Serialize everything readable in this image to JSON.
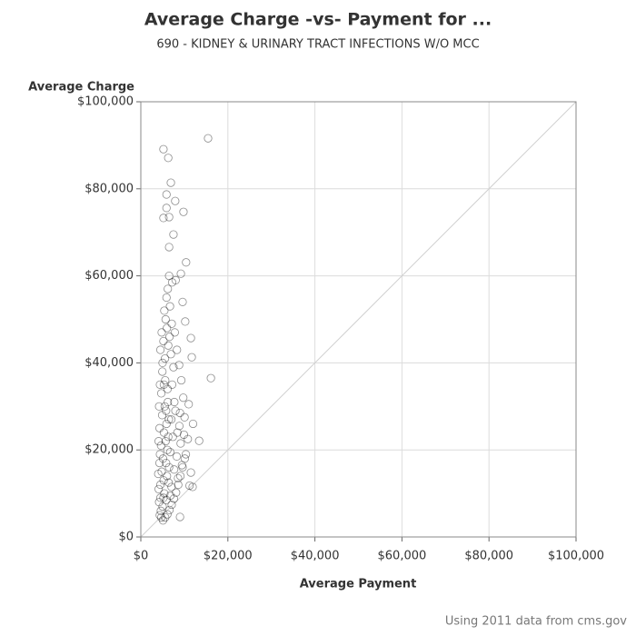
{
  "chart_data": {
    "type": "scatter",
    "title": "Average Charge -vs- Payment for ...",
    "subtitle": "690 - KIDNEY & URINARY TRACT INFECTIONS W/O MCC",
    "xlabel": "Average Payment",
    "ylabel": "Average Charge",
    "footnote": "Using 2011 data from cms.gov",
    "color": "#000000",
    "grid": true,
    "xlim": [
      0,
      100000
    ],
    "ylim": [
      0,
      100000
    ],
    "xticks": [
      {
        "value": 0,
        "label": "$0"
      },
      {
        "value": 20000,
        "label": "$20,000"
      },
      {
        "value": 40000,
        "label": "$40,000"
      },
      {
        "value": 60000,
        "label": "$60,000"
      },
      {
        "value": 80000,
        "label": "$80,000"
      },
      {
        "value": 100000,
        "label": "$100,000"
      }
    ],
    "yticks": [
      {
        "value": 0,
        "label": "$0"
      },
      {
        "value": 20000,
        "label": "$20,000"
      },
      {
        "value": 40000,
        "label": "$40,000"
      },
      {
        "value": 60000,
        "label": "$60,000"
      },
      {
        "value": 80000,
        "label": "$80,000"
      },
      {
        "value": 100000,
        "label": "$100,000"
      }
    ],
    "x": [
      15450,
      5200,
      6300,
      6900,
      5900,
      7900,
      9800,
      5900,
      5200,
      6500,
      7500,
      6500,
      10400,
      9200,
      16100,
      13400,
      11500,
      11700,
      9000,
      11900,
      11500,
      4200,
      4500,
      4800,
      5100,
      5400,
      5700,
      6000,
      4300,
      4600,
      4900,
      5200,
      5500,
      5800,
      6100,
      6400,
      4100,
      4400,
      4700,
      5000,
      5300,
      5600,
      5900,
      6200,
      6500,
      6800,
      4000,
      4350,
      4650,
      4950,
      5250,
      5550,
      5850,
      6150,
      6450,
      6750,
      7050,
      7350,
      7650,
      7950,
      8250,
      8550,
      8850,
      9150,
      9450,
      9750,
      10050,
      10350,
      7200,
      7500,
      6900,
      6600,
      6300,
      6000,
      5700,
      5400,
      5900,
      6200,
      6700,
      7100,
      7800,
      8300,
      8800,
      9300,
      5100,
      5600,
      6100,
      6600,
      7100,
      7600,
      8100,
      8600,
      9100,
      9600,
      10100,
      10800,
      4500,
      4800,
      5200,
      4400,
      4200,
      4100,
      4300,
      4500,
      4700,
      5000,
      5300,
      5800,
      6300,
      7000,
      7700,
      8400,
      9000,
      9900,
      11000,
      12000,
      6500,
      7200,
      8000,
      9600,
      10200,
      11200
    ],
    "y": [
      91600,
      89100,
      87100,
      81400,
      78700,
      77200,
      74700,
      75600,
      73300,
      73500,
      69500,
      66600,
      63100,
      60500,
      36500,
      22100,
      45700,
      41300,
      4600,
      11500,
      14800,
      8000,
      12000,
      15000,
      18000,
      10000,
      22000,
      14000,
      25000,
      6000,
      28000,
      9000,
      30000,
      17000,
      20000,
      12500,
      11000,
      19000,
      33000,
      7000,
      24000,
      36000,
      26000,
      31000,
      16000,
      9500,
      14500,
      5000,
      21000,
      38000,
      13000,
      41000,
      8500,
      34000,
      27000,
      19500,
      11500,
      23000,
      15500,
      29000,
      18500,
      13500,
      25500,
      21500,
      16500,
      32000,
      27500,
      19000,
      35000,
      39000,
      42000,
      46000,
      44000,
      48000,
      50000,
      52000,
      55000,
      57000,
      53000,
      49000,
      47000,
      43000,
      39500,
      36000,
      3800,
      4500,
      5200,
      6200,
      7400,
      8800,
      10200,
      12000,
      14000,
      16000,
      18000,
      22500,
      43000,
      47000,
      45000,
      35000,
      30000,
      22000,
      17000,
      9000,
      4500,
      40000,
      35000,
      29000,
      23000,
      27000,
      31000,
      24000,
      28500,
      23500,
      30500,
      26000,
      60000,
      58500,
      59000,
      54000,
      49500,
      11800
    ]
  }
}
